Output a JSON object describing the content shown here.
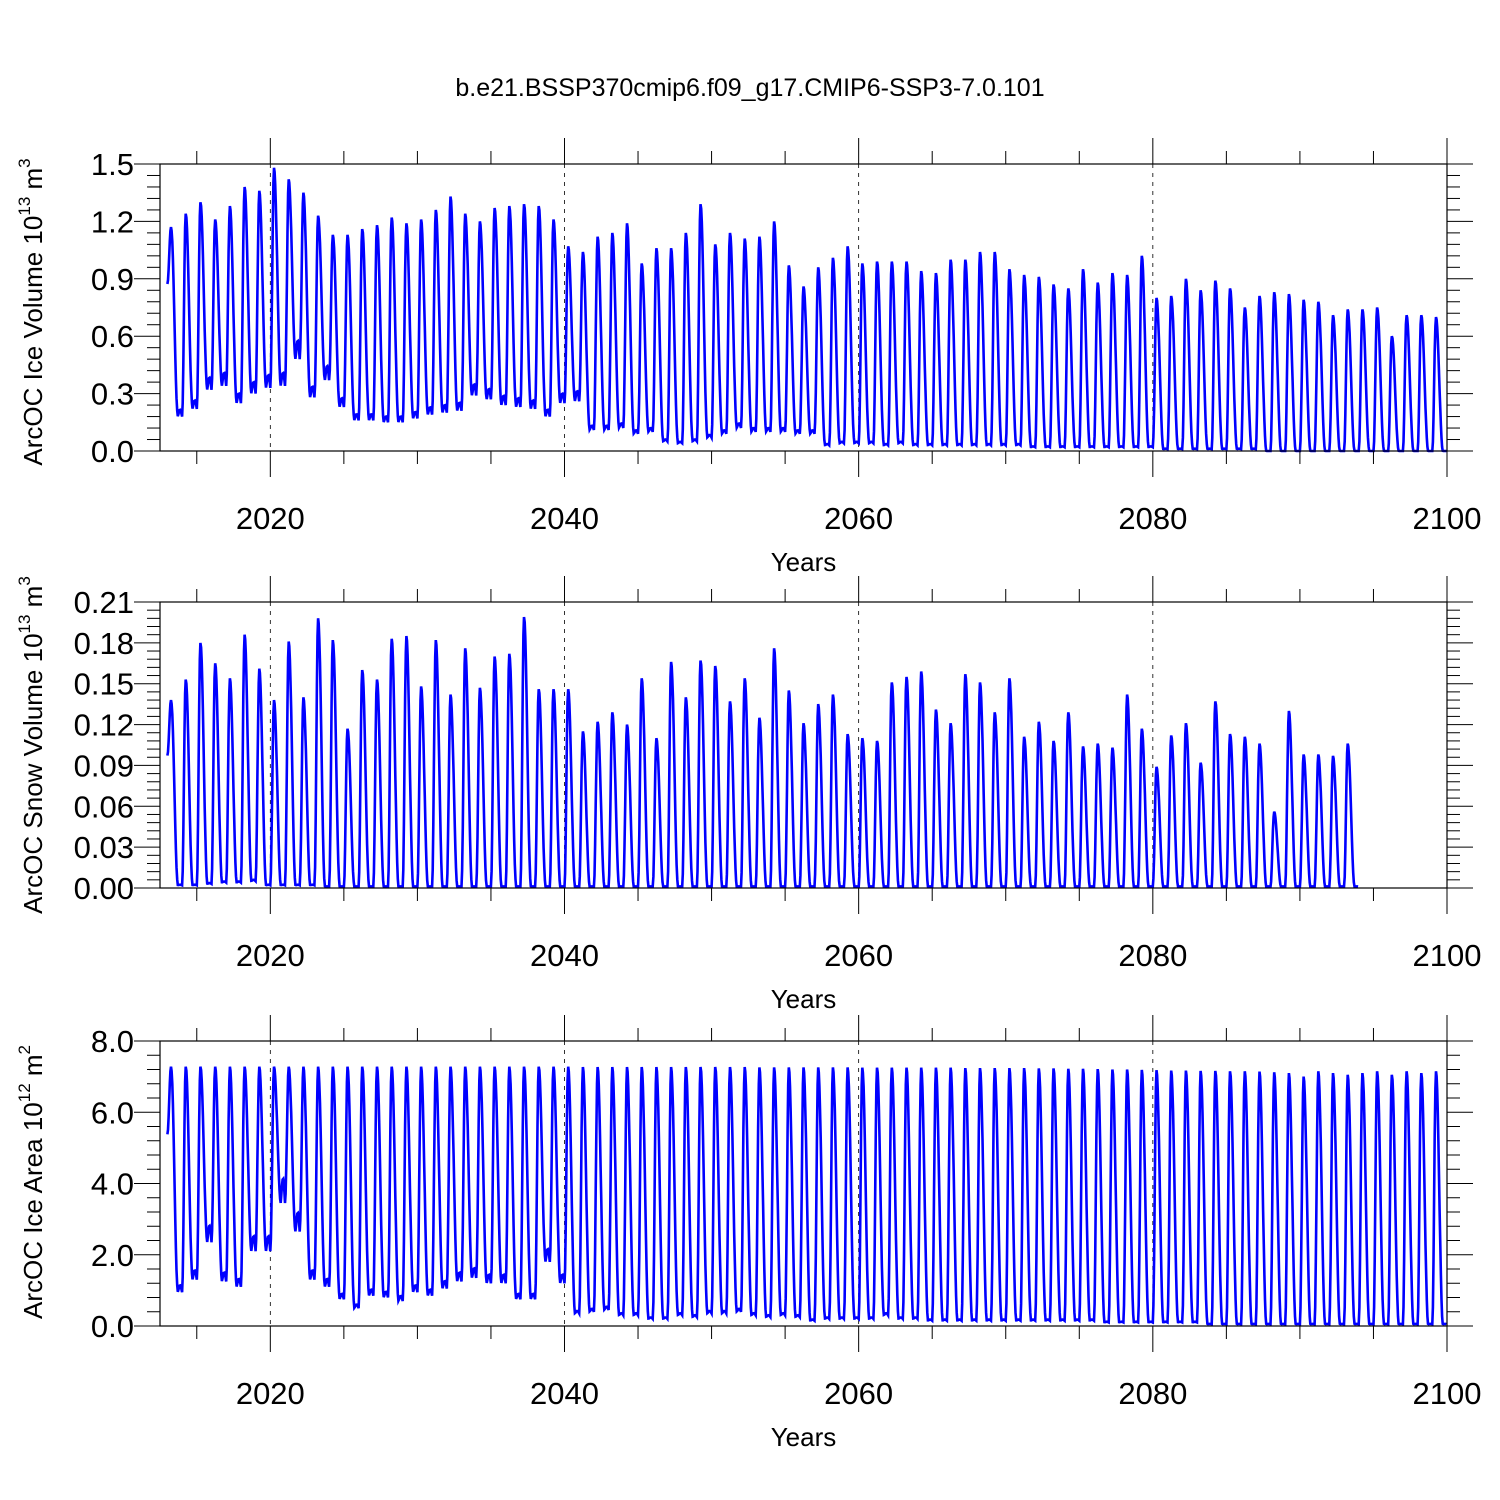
{
  "title": "b.e21.BSSP370cmip6.f09_g17.CMIP6-SSP3-7.0.101",
  "series_color": "#0000ff",
  "chart_data": [
    {
      "type": "line",
      "ylabel": "ArcOC Ice Volume 10",
      "ylabel_exp": "13",
      "ylabel_unit": " m",
      "ylabel_unit_exp": "3",
      "xlabel": "Years",
      "xlim": [
        2012.5,
        2100
      ],
      "ylim": [
        0.0,
        1.5
      ],
      "yticks": [
        0.0,
        0.3,
        0.6,
        0.9,
        1.2,
        1.5
      ],
      "ytick_labels": [
        "0.0",
        "0.3",
        "0.6",
        "0.9",
        "1.2",
        "1.5"
      ],
      "xticks": [
        2020,
        2040,
        2060,
        2080,
        2100
      ],
      "xtick_labels": [
        "2020",
        "2040",
        "2060",
        "2080",
        "2100"
      ],
      "grid": "dashed vertical lines at labeled years",
      "start_year": 2013,
      "annual_max": [
        1.17,
        1.24,
        1.3,
        1.21,
        1.28,
        1.38,
        1.36,
        1.48,
        1.42,
        1.35,
        1.23,
        1.13,
        1.13,
        1.16,
        1.18,
        1.22,
        1.19,
        1.21,
        1.26,
        1.33,
        1.24,
        1.2,
        1.27,
        1.28,
        1.29,
        1.28,
        1.21,
        1.07,
        1.04,
        1.12,
        1.14,
        1.19,
        0.98,
        1.06,
        1.06,
        1.14,
        1.29,
        1.08,
        1.14,
        1.11,
        1.12,
        1.2,
        0.97,
        0.86,
        0.96,
        1.01,
        1.07,
        0.98,
        0.99,
        0.99,
        0.99,
        0.94,
        0.93,
        1.0,
        1.0,
        1.04,
        1.04,
        0.95,
        0.92,
        0.91,
        0.87,
        0.85,
        0.95,
        0.88,
        0.93,
        0.92,
        1.02,
        0.8,
        0.81,
        0.9,
        0.84,
        0.89,
        0.85,
        0.75,
        0.81,
        0.83,
        0.82,
        0.79,
        0.78,
        0.71,
        0.74,
        0.74,
        0.75,
        0.6,
        0.71,
        0.71,
        0.7
      ],
      "annual_min": [
        0.18,
        0.22,
        0.32,
        0.34,
        0.25,
        0.3,
        0.33,
        0.34,
        0.48,
        0.28,
        0.37,
        0.23,
        0.16,
        0.16,
        0.15,
        0.15,
        0.17,
        0.19,
        0.2,
        0.21,
        0.29,
        0.27,
        0.24,
        0.23,
        0.22,
        0.18,
        0.25,
        0.26,
        0.11,
        0.11,
        0.12,
        0.09,
        0.1,
        0.05,
        0.04,
        0.05,
        0.07,
        0.09,
        0.12,
        0.1,
        0.1,
        0.1,
        0.09,
        0.09,
        0.03,
        0.04,
        0.04,
        0.04,
        0.03,
        0.04,
        0.03,
        0.03,
        0.03,
        0.03,
        0.03,
        0.03,
        0.03,
        0.03,
        0.02,
        0.02,
        0.02,
        0.02,
        0.02,
        0.02,
        0.02,
        0.02,
        0.02,
        0.01,
        0.01,
        0.01,
        0.01,
        0.01,
        0.01,
        0.01,
        0.0,
        0.0,
        0.0,
        0.0,
        0.0,
        0.0,
        0.0,
        0.0,
        0.0,
        0.0,
        0.0,
        0.0,
        0.0
      ],
      "series": [
        {
          "values_note": ""
        }
      ]
    },
    {
      "type": "line",
      "ylabel": "ArcOC Snow Volume 10",
      "ylabel_exp": "13",
      "ylabel_unit": " m",
      "ylabel_unit_exp": "3",
      "xlabel": "Years",
      "xlim": [
        2012.5,
        2100
      ],
      "ylim": [
        0.0,
        0.21
      ],
      "yticks": [
        0.0,
        0.03,
        0.06,
        0.09,
        0.12,
        0.15,
        0.18,
        0.21
      ],
      "ytick_labels": [
        "0.00",
        "0.03",
        "0.06",
        "0.09",
        "0.12",
        "0.15",
        "0.18",
        "0.21"
      ],
      "xticks": [
        2020,
        2040,
        2060,
        2080,
        2100
      ],
      "xtick_labels": [
        "2020",
        "2040",
        "2060",
        "2080",
        "2100"
      ],
      "grid": "dashed vertical lines at labeled years",
      "start_year": 2013,
      "annual_max": [
        0.138,
        0.153,
        0.18,
        0.165,
        0.154,
        0.186,
        0.161,
        0.138,
        0.181,
        0.14,
        0.198,
        0.182,
        0.117,
        0.16,
        0.153,
        0.183,
        0.185,
        0.148,
        0.182,
        0.142,
        0.176,
        0.147,
        0.17,
        0.172,
        0.199,
        0.146,
        0.146,
        0.146,
        0.115,
        0.122,
        0.129,
        0.12,
        0.154,
        0.11,
        0.166,
        0.14,
        0.167,
        0.163,
        0.137,
        0.154,
        0.125,
        0.176,
        0.145,
        0.121,
        0.135,
        0.142,
        0.113,
        0.11,
        0.108,
        0.151,
        0.155,
        0.159,
        0.131,
        0.121,
        0.157,
        0.151,
        0.129,
        0.154,
        0.111,
        0.122,
        0.108,
        0.129,
        0.104,
        0.106,
        0.103,
        0.142,
        0.117,
        0.089,
        0.112,
        0.121,
        0.092,
        0.137,
        0.113,
        0.111,
        0.106,
        0.056,
        0.13,
        0.098,
        0.098,
        0.097,
        0.106
      ],
      "annual_min": [
        0.002,
        0.002,
        0.003,
        0.004,
        0.004,
        0.005,
        0.002,
        0.002,
        0.002,
        0.002,
        0.001,
        0.001,
        0.001,
        0.001,
        0.001,
        0.001,
        0.001,
        0.001,
        0.001,
        0.001,
        0.001,
        0.001,
        0.001,
        0.001,
        0.001,
        0.001,
        0.001,
        0.001,
        0.001,
        0.001,
        0.001,
        0.001,
        0.001,
        0.001,
        0.001,
        0.001,
        0.001,
        0.001,
        0.001,
        0.001,
        0.001,
        0.001,
        0.001,
        0.001,
        0.001,
        0.001,
        0.001,
        0.001,
        0.001,
        0.001,
        0.001,
        0.001,
        0.001,
        0.001,
        0.001,
        0.001,
        0.001,
        0.001,
        0.001,
        0.001,
        0.001,
        0.001,
        0.001,
        0.001,
        0.001,
        0.001,
        0.001,
        0.001,
        0.001,
        0.001,
        0.001,
        0.001,
        0.001,
        0.001,
        0.001,
        0.001,
        0.001,
        0.001,
        0.001,
        0.001,
        0.001
      ]
    },
    {
      "type": "line",
      "ylabel": "ArcOC Ice Area 10",
      "ylabel_exp": "12",
      "ylabel_unit": " m",
      "ylabel_unit_exp": "2",
      "xlabel": "Years",
      "xlim": [
        2012.5,
        2100
      ],
      "ylim": [
        0.0,
        8.0
      ],
      "yticks": [
        0.0,
        2.0,
        4.0,
        6.0,
        8.0
      ],
      "ytick_labels": [
        "0.0",
        "2.0",
        "4.0",
        "6.0",
        "8.0"
      ],
      "xticks": [
        2020,
        2040,
        2060,
        2080,
        2100
      ],
      "xtick_labels": [
        "2020",
        "2040",
        "2060",
        "2080",
        "2100"
      ],
      "grid": "dashed vertical lines at labeled years",
      "start_year": 2013,
      "annual_max": [
        7.28,
        7.28,
        7.28,
        7.28,
        7.28,
        7.28,
        7.28,
        7.28,
        7.28,
        7.28,
        7.28,
        7.28,
        7.28,
        7.28,
        7.28,
        7.28,
        7.28,
        7.28,
        7.28,
        7.28,
        7.28,
        7.28,
        7.28,
        7.28,
        7.28,
        7.28,
        7.28,
        7.28,
        7.27,
        7.27,
        7.27,
        7.27,
        7.27,
        7.27,
        7.27,
        7.27,
        7.27,
        7.27,
        7.27,
        7.27,
        7.26,
        7.26,
        7.26,
        7.26,
        7.26,
        7.26,
        7.26,
        7.25,
        7.25,
        7.25,
        7.25,
        7.25,
        7.25,
        7.25,
        7.24,
        7.24,
        7.24,
        7.24,
        7.24,
        7.23,
        7.23,
        7.22,
        7.22,
        7.21,
        7.2,
        7.2,
        7.19,
        7.18,
        7.17,
        7.17,
        7.16,
        7.16,
        7.15,
        7.15,
        7.14,
        7.12,
        7.1,
        7.0,
        7.15,
        7.1,
        7.05,
        7.1,
        7.15,
        7.05,
        7.15,
        7.1,
        7.15
      ],
      "annual_min": [
        0.95,
        1.3,
        2.35,
        1.25,
        1.1,
        2.1,
        2.1,
        3.45,
        2.65,
        1.3,
        1.1,
        0.75,
        0.5,
        0.85,
        0.8,
        0.7,
        0.95,
        0.85,
        1.05,
        1.25,
        1.35,
        1.2,
        1.2,
        0.75,
        0.75,
        1.8,
        1.2,
        0.35,
        0.4,
        0.45,
        0.3,
        0.3,
        0.2,
        0.2,
        0.3,
        0.25,
        0.35,
        0.35,
        0.4,
        0.3,
        0.25,
        0.3,
        0.25,
        0.15,
        0.2,
        0.2,
        0.2,
        0.2,
        0.3,
        0.2,
        0.2,
        0.15,
        0.15,
        0.15,
        0.15,
        0.15,
        0.15,
        0.15,
        0.15,
        0.15,
        0.15,
        0.15,
        0.15,
        0.1,
        0.1,
        0.1,
        0.1,
        0.1,
        0.1,
        0.1,
        0.05,
        0.05,
        0.05,
        0.05,
        0.05,
        0.05,
        0.05,
        0.05,
        0.05,
        0.05,
        0.05,
        0.05,
        0.05,
        0.05,
        0.05,
        0.05,
        0.05
      ]
    }
  ]
}
